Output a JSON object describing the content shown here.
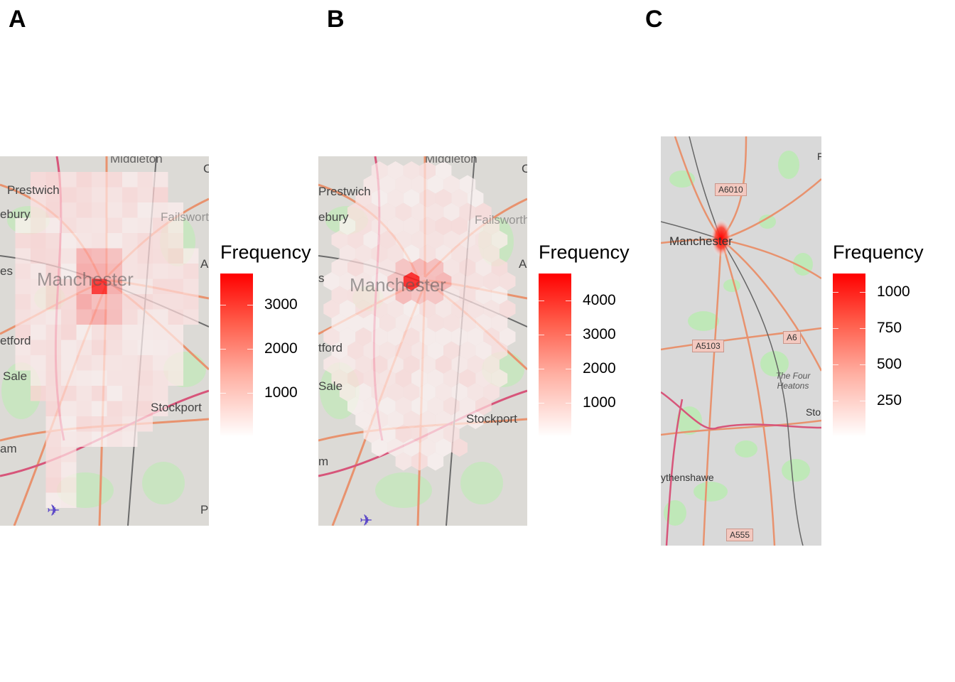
{
  "panels": [
    {
      "letter": "A",
      "legend_title": "Frequency",
      "legend_ticks": [
        "3000",
        "2000",
        "1000"
      ],
      "legend_values": [
        3000,
        2000,
        1000
      ],
      "legend_max": 3700,
      "place_labels": [
        "Middleton",
        "Prestwich",
        "ebury",
        "Failsworth",
        "Manchester",
        "etford",
        "Sale",
        "Stockport",
        "am",
        "es",
        "A",
        "C",
        "P"
      ]
    },
    {
      "letter": "B",
      "legend_title": "Frequency",
      "legend_ticks": [
        "4000",
        "3000",
        "2000",
        "1000"
      ],
      "legend_values": [
        4000,
        3000,
        2000,
        1000
      ],
      "legend_max": 4800,
      "place_labels": [
        "Middleton",
        "Prestwich",
        "ebury",
        "Failsworth",
        "Manchester",
        "tford",
        "Sale",
        "Stockport",
        "m",
        "s",
        "A",
        "C"
      ]
    },
    {
      "letter": "C",
      "legend_title": "Frequency",
      "legend_ticks": [
        "1000",
        "750",
        "500",
        "250"
      ],
      "legend_values": [
        1000,
        750,
        500,
        250
      ],
      "legend_max": 1130,
      "place_labels": [
        "Manchester",
        "The Four Heatons",
        "ythenshawe",
        "Sto",
        "F"
      ],
      "road_labels": [
        "A6010",
        "A5103",
        "A6",
        "A555"
      ]
    }
  ],
  "colors": {
    "low": "#ffffff",
    "high": "#ff0000",
    "map_land": "#dcdad6",
    "map_green": "#c9e8c2",
    "road_major": "#e8926e",
    "road_motorway": "#d7557a"
  }
}
